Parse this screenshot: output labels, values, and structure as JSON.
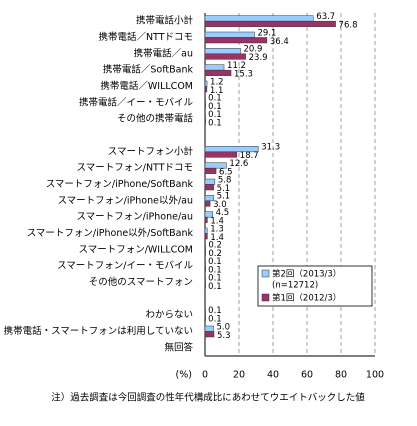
{
  "chart_data": {
    "type": "bar",
    "orientation": "horizontal",
    "categories": [
      "携帯電話小計",
      "携帯電話／NTTドコモ",
      "携帯電話／au",
      "携帯電話／SoftBank",
      "携帯電話／WILLCOM",
      "携帯電話／イー・モバイル",
      "その他の携帯電話",
      null,
      "スマートフォン小計",
      "スマートフォン/NTTドコモ",
      "スマートフォン/iPhone/SoftBank",
      "スマートフォン/iPhone以外/au",
      "スマートフォン/iPhone/au",
      "スマートフォン/iPhone以外/SoftBank",
      "スマートフォン/WILLCOM",
      "スマートフォン/イー・モバイル",
      "その他のスマートフォン",
      null,
      "わからない",
      "携帯電話・スマートフォンは利用していない",
      "無回答"
    ],
    "series": [
      {
        "name": "第2回（2013/3）",
        "color": "#99ccff",
        "values": [
          63.7,
          29.1,
          20.9,
          11.2,
          1.2,
          0.1,
          0.1,
          null,
          31.3,
          12.6,
          5.8,
          5.1,
          4.5,
          1.3,
          0.2,
          0.1,
          0.1,
          null,
          0.1,
          5,
          null
        ],
        "value_labels": [
          "63.7",
          "29.1",
          "20.9",
          "11.2",
          "1.2",
          "0.1",
          "0.1",
          null,
          "31.3",
          "12.6",
          "5.8",
          "5.1",
          "4.5",
          "1.3",
          "0.2",
          "0.1",
          "0.1",
          null,
          "0.1",
          "5.0",
          null
        ]
      },
      {
        "name": "第1回（2012/3）",
        "color": "#993366",
        "values": [
          76.8,
          36.4,
          23.9,
          15.3,
          1.1,
          0.1,
          0.1,
          null,
          18.7,
          6.5,
          5.1,
          3,
          1.4,
          1.4,
          0.2,
          0.1,
          0.1,
          null,
          0.1,
          5.3,
          null
        ],
        "value_labels": [
          "76.8",
          "36.4",
          "23.9",
          "15.3",
          "1.1",
          "0.1",
          "0.1",
          null,
          "18.7",
          "6.5",
          "5.1",
          "3.0",
          "1.4",
          "1.4",
          "0.2",
          "0.1",
          "0.1",
          null,
          "0.1",
          "5.3",
          null
        ]
      }
    ],
    "legend_note": "(n=12712)",
    "xlabel": "(%)",
    "xlim": [
      0,
      100
    ],
    "xticks": [
      0,
      20,
      40,
      60,
      80,
      100
    ],
    "grid": true,
    "footnote": "注）過去調査は今回調査の性年代構成比にあわせてウエイトバックした値"
  }
}
